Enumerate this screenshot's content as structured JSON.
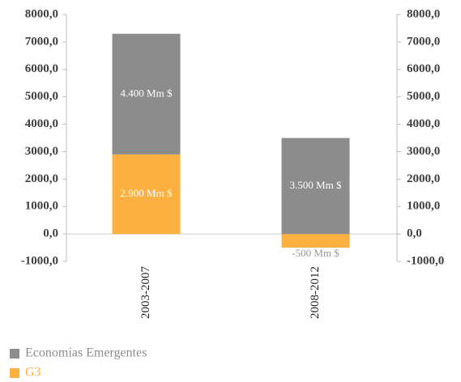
{
  "chart_data": {
    "type": "bar",
    "stacked": true,
    "categories": [
      "2003-2007",
      "2008-2012"
    ],
    "series": [
      {
        "name": "G3",
        "color": "#fbb040",
        "values": [
          2900,
          -500
        ],
        "value_labels": [
          "2.900 Mm $",
          "-500 Mm $"
        ]
      },
      {
        "name": "Economías Emergentes",
        "color": "#8c8c8c",
        "values": [
          4400,
          3500
        ],
        "value_labels": [
          "4.400 Mm $",
          "3.500 Mm $"
        ]
      }
    ],
    "ylim": [
      -1000,
      8000
    ],
    "yticks": [
      {
        "value": -1000,
        "label": "-1000,0"
      },
      {
        "value": 0,
        "label": "0,0"
      },
      {
        "value": 1000,
        "label": "1000,0"
      },
      {
        "value": 2000,
        "label": "2000,0"
      },
      {
        "value": 3000,
        "label": "3000,0"
      },
      {
        "value": 4000,
        "label": "4000,0"
      },
      {
        "value": 5000,
        "label": "5000,0"
      },
      {
        "value": 6000,
        "label": "6000,0"
      },
      {
        "value": 7000,
        "label": "7000,0"
      },
      {
        "value": 8000,
        "label": "8000,0"
      }
    ],
    "y2lim": [
      -1000,
      8000
    ],
    "y2ticks": [
      {
        "value": -1000,
        "label": "-1000,0"
      },
      {
        "value": 0,
        "label": "0,0"
      },
      {
        "value": 1000,
        "label": "1000,0"
      },
      {
        "value": 2000,
        "label": "2000,0"
      },
      {
        "value": 3000,
        "label": "3000,0"
      },
      {
        "value": 4000,
        "label": "4000,0"
      },
      {
        "value": 5000,
        "label": "5000,0"
      },
      {
        "value": 6000,
        "label": "6000,0"
      },
      {
        "value": 7000,
        "label": "7000,0"
      },
      {
        "value": 8000,
        "label": "8000,0"
      }
    ],
    "grid": false,
    "legend": "bottom-left"
  }
}
